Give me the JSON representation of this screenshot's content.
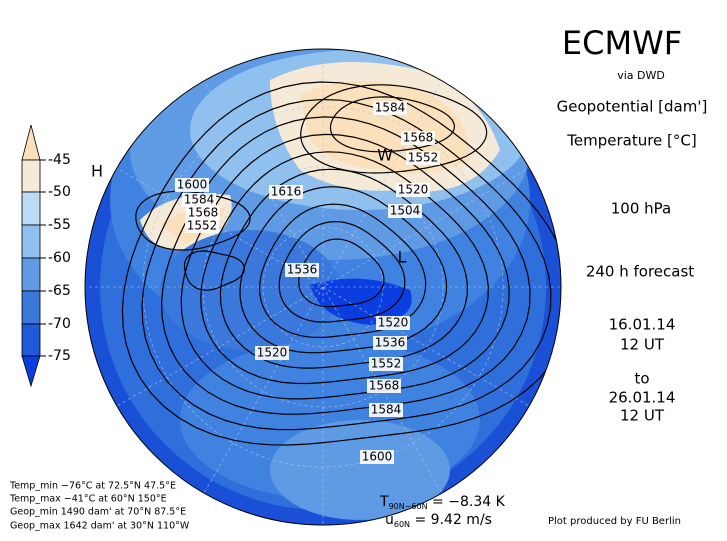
{
  "header": {
    "title": "ECMWF",
    "source": "via DWD"
  },
  "fields": [
    "Geopotential [dam']",
    "Temperature [°C]"
  ],
  "level": "100 hPa",
  "forecast": "240 h forecast",
  "init": [
    "16.01.14",
    "12 UT"
  ],
  "to": "to",
  "valid": [
    "26.01.14",
    "12 UT"
  ],
  "colorbar": {
    "labels": [
      "-45",
      "-50",
      "-55",
      "-60",
      "-65",
      "-70",
      "-75"
    ]
  },
  "map": {
    "contour_labels": [
      "1584",
      "1568",
      "1552",
      "1520",
      "1504",
      "1616",
      "1600",
      "1584",
      "1568",
      "1552",
      "1536",
      "1520",
      "1536",
      "1552",
      "1568",
      "1584",
      "1600",
      "1520"
    ],
    "centers": [
      "H",
      "W",
      "L"
    ]
  },
  "stats": [
    "Temp_min −76°C at 72.5°N 47.5°E",
    "Temp_max −41°C at 60°N 150°E",
    "Geop_min 1490 dam' at 70°N 87.5°E",
    "Geop_max 1642 dam' at 30°N 110°W"
  ],
  "mean": {
    "t_symbol": "T",
    "t_sub": "90N−60N",
    "t_value": " = −8.34 K",
    "u_symbol": "u",
    "u_sub": "60N",
    "u_value": " = 9.42 m/s"
  },
  "credit": "Plot produced by FU Berlin"
}
